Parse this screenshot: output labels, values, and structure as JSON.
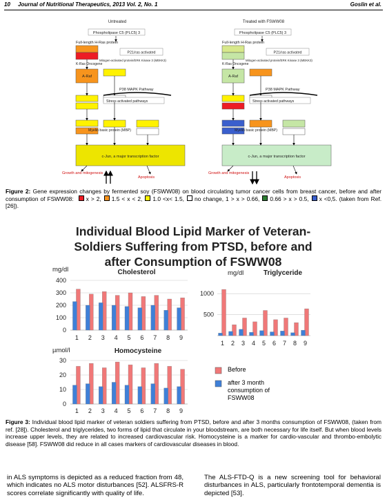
{
  "header": {
    "page": "10",
    "journal": "Journal of Nutritional Therapeutics, 2013 Vol. 2, No. 1",
    "author": "Goslin et al."
  },
  "diagram": {
    "labels": [
      "Phospholipase C5 (PLC5) 3",
      "Full-length H-Ras protein",
      "P21/ras activated",
      "K-Ras Oncogene",
      "Mitogen-activated protein/ERK Kinase 3 (MEKK3)",
      "A-Raf",
      "P38 MAPK Pathway",
      "Stress activated pathways",
      "Myelin basic protein (MBP)",
      "c-Jun, a major transcription factor",
      "Growth and mitogenesis",
      "Apoptosis"
    ],
    "panels": [
      {
        "title": "Untreated",
        "colors": [
          "#f7941d",
          "#ed1c24",
          "#f7941d",
          "#fff200",
          "#fff200",
          "#fff200",
          "#f7941d",
          "#fff200",
          "#ffffff",
          "#fff200",
          "#fff200",
          "#ffffff",
          "#ede500"
        ]
      },
      {
        "title": "Treated with FSWW08",
        "colors": [
          "#d7e88a",
          "#c5e6a5",
          "#c5e6a5",
          "#fff200",
          "#ed1c24",
          "#3a5fcd",
          "#3a5fcd",
          "#f7941d",
          "#ffffff",
          "#f7941d",
          "#c5e6a5",
          "#ffffff",
          "#c8ecc8"
        ]
      }
    ]
  },
  "figure2_caption": {
    "label": "Figure 2:",
    "parts": [
      "Gene expression changes by fermented soy (FSWW08) on blood circulating tumor cancer cells from breast cancer, before and after consumption of FSWW08:",
      "x > 2,",
      "1.5 < x < 2,",
      "1.0 <x< 1.5,",
      "no change, 1 > x > 0.66,",
      "0.66 > x > 0.5,",
      "x <0,5. (taken from Ref. [26])."
    ],
    "swatches": [
      "#ed1c24",
      "#f7941d",
      "#fff200",
      "#ffffff",
      "#2e7d32",
      "#3a5fcd"
    ]
  },
  "figure3_title": "Individual Blood Lipid Marker of Veteran-Soldiers Suffering from PTSD, before and after Consumption of FSWW08",
  "chart_data": [
    {
      "type": "bar",
      "title": "Cholesterol",
      "y_label": "mg/dl",
      "categories": [
        "1",
        "2",
        "3",
        "4",
        "5",
        "6",
        "7",
        "8",
        "9"
      ],
      "ylim": [
        0,
        400
      ],
      "yticks": [
        0,
        100,
        200,
        300,
        400
      ],
      "grid": true,
      "series": [
        {
          "name": "Before",
          "color": "#f07878",
          "values": [
            330,
            290,
            310,
            280,
            300,
            270,
            280,
            250,
            260
          ]
        },
        {
          "name": "after 3 month consumption of FSWW08",
          "color": "#3f80d8",
          "values": [
            230,
            200,
            220,
            200,
            190,
            180,
            200,
            160,
            180
          ]
        }
      ]
    },
    {
      "type": "bar",
      "title": "Triglyceride",
      "y_label": "mg/dl",
      "categories": [
        "1",
        "2",
        "3",
        "4",
        "5",
        "6",
        "7",
        "8",
        "9"
      ],
      "ylim": [
        0,
        1200
      ],
      "yticks": [
        500,
        1000
      ],
      "grid": true,
      "series": [
        {
          "color": "#f07878",
          "values": [
            1100,
            260,
            420,
            330,
            600,
            380,
            420,
            310,
            640
          ]
        },
        {
          "color": "#3f80d8",
          "values": [
            60,
            100,
            150,
            80,
            120,
            90,
            110,
            70,
            130
          ]
        }
      ]
    },
    {
      "type": "bar",
      "title": "Homocysteine",
      "y_label": "µmol/l",
      "categories": [
        "1",
        "2",
        "3",
        "4",
        "5",
        "6",
        "7",
        "8",
        "9"
      ],
      "ylim": [
        0,
        30
      ],
      "yticks": [
        0,
        10,
        20,
        30
      ],
      "grid": true,
      "series": [
        {
          "color": "#f07878",
          "values": [
            26,
            28,
            25,
            29,
            27,
            25,
            28,
            26,
            24
          ]
        },
        {
          "color": "#3f80d8",
          "values": [
            13,
            14,
            12,
            15,
            13,
            12,
            14,
            11,
            12
          ]
        }
      ]
    }
  ],
  "figure3_caption": {
    "label": "Figure 3:",
    "text": "Individual blood lipid marker of veteran soldiers suffering from PTSD, before and after 3 months consumption of FSWW08, (taken from ref. [28]). Cholesterol and triglycerides, two forms of lipid that circulate in your bloodstream, are both necessary for life itself. But when blood levels increase upper levels, they are related to increased cardiovascular risk. Homocysteine is a marker for cardio-vascular and thrombo-embolytic disease [58]. FSWW08 did reduce in all cases markers of cardiovascular diseases in blood."
  },
  "body": {
    "left": "in ALS symptoms is depicted as a reduced fraction from 48, which indicates no ALS motor disturbances [52]. ALSFRS-R scores correlate significantly with quality of life.",
    "right": "The ALS-FTD-Q is a new screening tool for behavioral disturbances in ALS, particularly frontotemporal dementia is depicted [53]."
  }
}
